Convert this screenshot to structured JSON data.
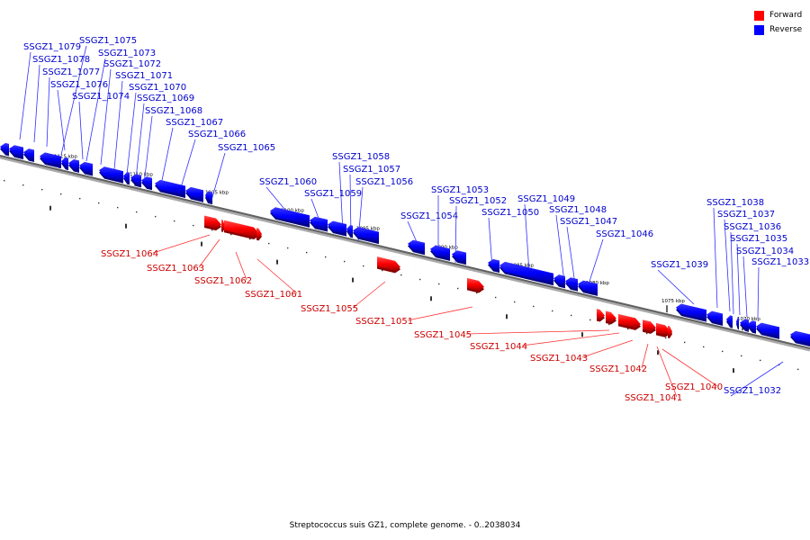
{
  "legend": {
    "forward_label": "Forward",
    "reverse_label": "Reverse",
    "forward_color": "#ff0000",
    "reverse_color": "#0000ff"
  },
  "caption": "Streptococcus suis GZ1, complete genome. - 0..2038034",
  "colors": {
    "backbone": "#808080",
    "label_forward": "#cc0000",
    "label_reverse": "#0000cc"
  },
  "tick_labels": [
    "1115 kbp",
    "1110 kbp",
    "1105 kbp",
    "1100 kbp",
    "1095 kbp",
    "1090 kbp",
    "1085 kbp",
    "1080 kbp",
    "1075 kbp",
    "1070 kbp"
  ],
  "genes": [
    {
      "id": "SSGZ1_1079",
      "strand": "reverse"
    },
    {
      "id": "SSGZ1_1078",
      "strand": "reverse"
    },
    {
      "id": "SSGZ1_1077",
      "strand": "reverse"
    },
    {
      "id": "SSGZ1_1076",
      "strand": "reverse"
    },
    {
      "id": "SSGZ1_1075",
      "strand": "reverse"
    },
    {
      "id": "SSGZ1_1074",
      "strand": "reverse"
    },
    {
      "id": "SSGZ1_1073",
      "strand": "reverse"
    },
    {
      "id": "SSGZ1_1072",
      "strand": "reverse"
    },
    {
      "id": "SSGZ1_1071",
      "strand": "reverse"
    },
    {
      "id": "SSGZ1_1070",
      "strand": "reverse"
    },
    {
      "id": "SSGZ1_1069",
      "strand": "reverse"
    },
    {
      "id": "SSGZ1_1068",
      "strand": "reverse"
    },
    {
      "id": "SSGZ1_1067",
      "strand": "reverse"
    },
    {
      "id": "SSGZ1_1066",
      "strand": "reverse"
    },
    {
      "id": "SSGZ1_1065",
      "strand": "reverse"
    },
    {
      "id": "SSGZ1_1064",
      "strand": "forward"
    },
    {
      "id": "SSGZ1_1063",
      "strand": "forward"
    },
    {
      "id": "SSGZ1_1062",
      "strand": "forward"
    },
    {
      "id": "SSGZ1_1061",
      "strand": "forward"
    },
    {
      "id": "SSGZ1_1060",
      "strand": "reverse"
    },
    {
      "id": "SSGZ1_1059",
      "strand": "reverse"
    },
    {
      "id": "SSGZ1_1058",
      "strand": "reverse"
    },
    {
      "id": "SSGZ1_1057",
      "strand": "reverse"
    },
    {
      "id": "SSGZ1_1056",
      "strand": "reverse"
    },
    {
      "id": "SSGZ1_1055",
      "strand": "forward"
    },
    {
      "id": "SSGZ1_1054",
      "strand": "reverse"
    },
    {
      "id": "SSGZ1_1053",
      "strand": "reverse"
    },
    {
      "id": "SSGZ1_1052",
      "strand": "reverse"
    },
    {
      "id": "SSGZ1_1051",
      "strand": "forward"
    },
    {
      "id": "SSGZ1_1050",
      "strand": "reverse"
    },
    {
      "id": "SSGZ1_1049",
      "strand": "reverse"
    },
    {
      "id": "SSGZ1_1048",
      "strand": "reverse"
    },
    {
      "id": "SSGZ1_1047",
      "strand": "reverse"
    },
    {
      "id": "SSGZ1_1046",
      "strand": "reverse"
    },
    {
      "id": "SSGZ1_1045",
      "strand": "forward"
    },
    {
      "id": "SSGZ1_1044",
      "strand": "forward"
    },
    {
      "id": "SSGZ1_1043",
      "strand": "forward"
    },
    {
      "id": "SSGZ1_1042",
      "strand": "forward"
    },
    {
      "id": "SSGZ1_1041",
      "strand": "forward"
    },
    {
      "id": "SSGZ1_1040",
      "strand": "forward"
    },
    {
      "id": "SSGZ1_1039",
      "strand": "reverse"
    },
    {
      "id": "SSGZ1_1038",
      "strand": "reverse"
    },
    {
      "id": "SSGZ1_1037",
      "strand": "reverse"
    },
    {
      "id": "SSGZ1_1036",
      "strand": "reverse"
    },
    {
      "id": "SSGZ1_1035",
      "strand": "reverse"
    },
    {
      "id": "SSGZ1_1034",
      "strand": "reverse"
    },
    {
      "id": "SSGZ1_1033",
      "strand": "reverse"
    },
    {
      "id": "SSGZ1_1032",
      "strand": "reverse"
    }
  ]
}
